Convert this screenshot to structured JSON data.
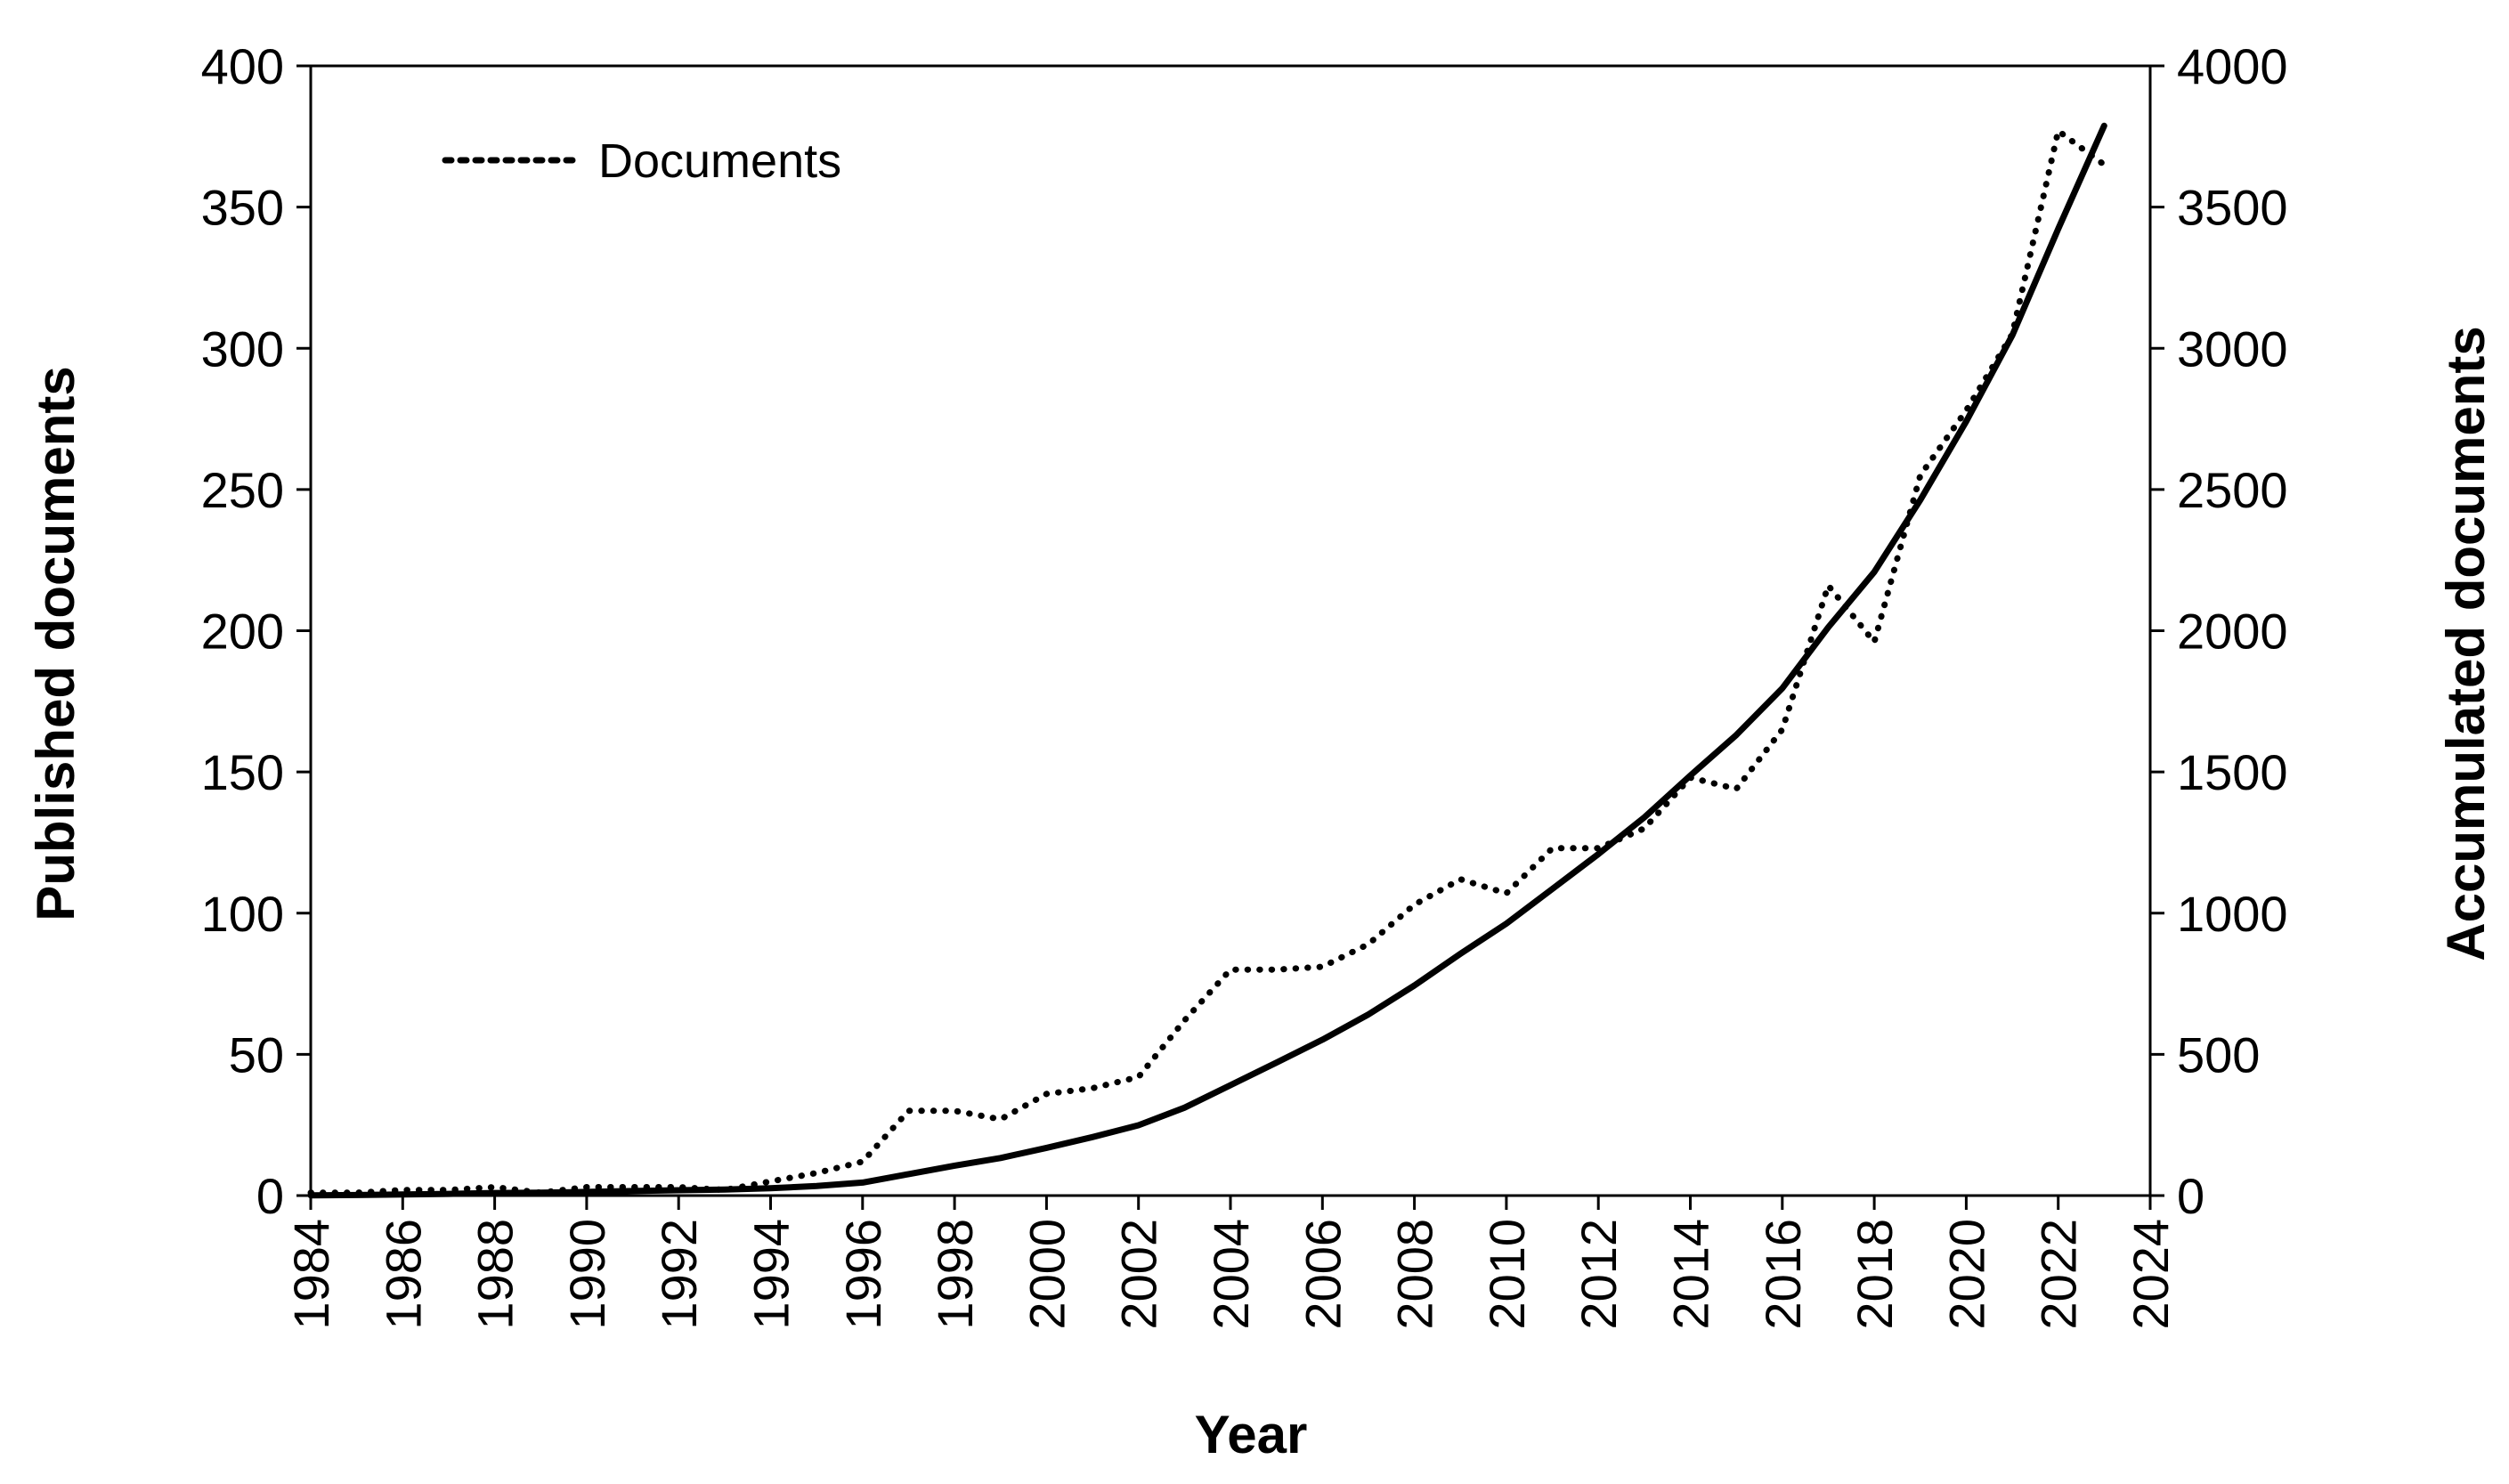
{
  "chart_data": {
    "type": "line",
    "title": "",
    "xlabel": "Year",
    "ylabel": "Published documents",
    "y2label": "Accumulated documents",
    "xlim": [
      1984,
      2024
    ],
    "ylim": [
      0,
      400
    ],
    "y2lim": [
      0,
      4000
    ],
    "x_ticks": [
      1984,
      1986,
      1988,
      1990,
      1992,
      1994,
      1996,
      1998,
      2000,
      2002,
      2004,
      2006,
      2008,
      2010,
      2012,
      2014,
      2016,
      2018,
      2020,
      2022,
      2024
    ],
    "y_ticks": [
      0,
      50,
      100,
      150,
      200,
      250,
      300,
      350,
      400
    ],
    "y2_ticks": [
      0,
      500,
      1000,
      1500,
      2000,
      2500,
      3000,
      3500,
      4000
    ],
    "legend_placement": "top-left",
    "grid": false,
    "x": [
      1984,
      1985,
      1986,
      1987,
      1988,
      1989,
      1990,
      1991,
      1992,
      1993,
      1994,
      1995,
      1996,
      1997,
      1998,
      1999,
      2000,
      2001,
      2002,
      2003,
      2004,
      2005,
      2006,
      2007,
      2008,
      2009,
      2010,
      2011,
      2012,
      2013,
      2014,
      2015,
      2016,
      2017,
      2018,
      2019,
      2020,
      2021,
      2022,
      2023
    ],
    "series": [
      {
        "name": "Documents",
        "axis": "left",
        "style": "dotted",
        "values": [
          1,
          1,
          2,
          2,
          3,
          1,
          3,
          3,
          3,
          2,
          5,
          8,
          12,
          30,
          30,
          27,
          36,
          38,
          42,
          62,
          80,
          80,
          81,
          89,
          103,
          112,
          107,
          123,
          123,
          130,
          148,
          144,
          165,
          216,
          196,
          255,
          278,
          305,
          377,
          365
        ]
      },
      {
        "name": "",
        "axis": "right",
        "style": "solid",
        "values": [
          1,
          2,
          4,
          6,
          9,
          10,
          13,
          16,
          19,
          21,
          26,
          34,
          46,
          76,
          106,
          133,
          169,
          207,
          249,
          311,
          391,
          471,
          552,
          641,
          744,
          856,
          963,
          1086,
          1209,
          1339,
          1487,
          1631,
          1796,
          2012,
          2208,
          2463,
          2741,
          3046,
          3423,
          3788
        ]
      }
    ],
    "colors": {
      "line": "#000000",
      "axis": "#000000",
      "background": "#ffffff"
    }
  }
}
